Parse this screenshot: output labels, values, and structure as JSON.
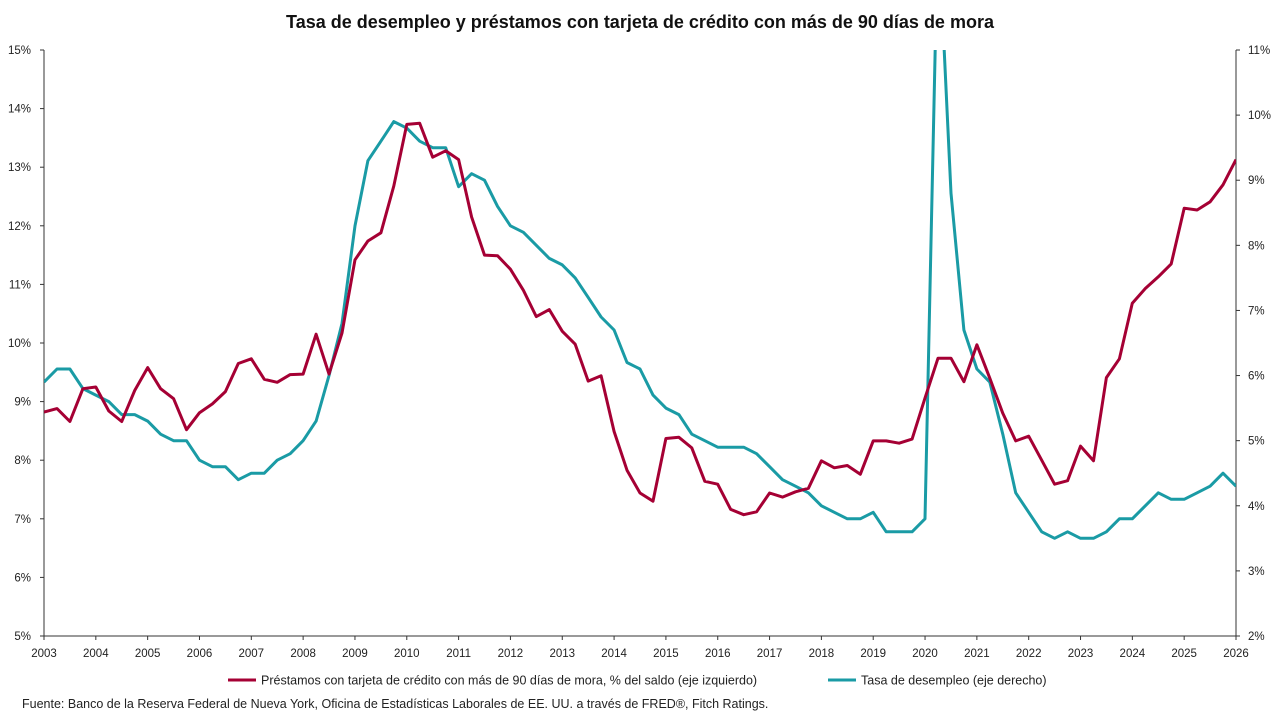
{
  "chart_data": {
    "type": "line",
    "title": "Tasa de desempleo y préstamos con tarjeta de crédito con más de 90 días de mora",
    "source": "Fuente: Banco de la Reserva Federal de Nueva York, Oficina de Estadísticas Laborales de EE. UU. a través de FRED®, Fitch Ratings.",
    "x_ticks": [
      "2003",
      "2004",
      "2005",
      "2006",
      "2007",
      "2008",
      "2009",
      "2010",
      "2011",
      "2012",
      "2013",
      "2014",
      "2015",
      "2016",
      "2017",
      "2018",
      "2019",
      "2020",
      "2021",
      "2022",
      "2023",
      "2024",
      "2025",
      "2026"
    ],
    "left_axis": {
      "ylim": [
        5,
        15
      ],
      "ticks": [
        "5%",
        "6%",
        "7%",
        "8%",
        "9%",
        "10%",
        "11%",
        "12%",
        "13%",
        "14%",
        "15%"
      ]
    },
    "right_axis": {
      "ylim": [
        2,
        11
      ],
      "ticks": [
        "2%",
        "3%",
        "4%",
        "5%",
        "6%",
        "7%",
        "8%",
        "9%",
        "10%",
        "11%"
      ]
    },
    "legend_placement": "bottom",
    "colors": {
      "credit": "#a50034",
      "unemployment": "#1a9ba5",
      "axis": "#333333"
    },
    "series": [
      {
        "name": "Préstamos con tarjeta de crédito con más de 90 días de mora, % del saldo (eje izquierdo)",
        "axis": "left",
        "x": [
          2003,
          2003.25,
          2003.5,
          2003.75,
          2004,
          2004.25,
          2004.5,
          2004.75,
          2005,
          2005.25,
          2005.5,
          2005.75,
          2006,
          2006.25,
          2006.5,
          2006.75,
          2007,
          2007.25,
          2007.5,
          2007.75,
          2008,
          2008.25,
          2008.5,
          2008.75,
          2009,
          2009.25,
          2009.5,
          2009.75,
          2010,
          2010.25,
          2010.5,
          2010.75,
          2011,
          2011.25,
          2011.5,
          2011.75,
          2012,
          2012.25,
          2012.5,
          2012.75,
          2013,
          2013.25,
          2013.5,
          2013.75,
          2014,
          2014.25,
          2014.5,
          2014.75,
          2015,
          2015.25,
          2015.5,
          2015.75,
          2016,
          2016.25,
          2016.5,
          2016.75,
          2017,
          2017.25,
          2017.5,
          2017.75,
          2018,
          2018.25,
          2018.5,
          2018.75,
          2019,
          2019.25,
          2019.5,
          2019.75,
          2020,
          2020.25,
          2020.5,
          2020.75,
          2021,
          2021.25,
          2021.5,
          2021.75,
          2022,
          2022.25,
          2022.5,
          2022.75,
          2023,
          2023.25,
          2023.5,
          2023.75,
          2024,
          2024.25,
          2024.5,
          2024.75,
          2025,
          2025.25,
          2025.5,
          2025.75,
          2026
        ],
        "values": [
          8.82,
          8.88,
          8.66,
          9.22,
          9.25,
          8.84,
          8.66,
          9.19,
          9.58,
          9.22,
          9.05,
          8.52,
          8.81,
          8.96,
          9.17,
          9.65,
          9.73,
          9.38,
          9.33,
          9.46,
          9.47,
          10.15,
          9.47,
          10.17,
          11.42,
          11.74,
          11.88,
          12.68,
          13.73,
          13.75,
          13.17,
          13.28,
          13.13,
          12.15,
          11.5,
          11.49,
          11.26,
          10.9,
          10.45,
          10.57,
          10.2,
          9.98,
          9.35,
          9.44,
          8.49,
          7.83,
          7.44,
          7.3,
          8.37,
          8.39,
          8.21,
          7.64,
          7.59,
          7.16,
          7.07,
          7.12,
          7.44,
          7.37,
          7.46,
          7.52,
          7.99,
          7.87,
          7.91,
          7.76,
          8.33,
          8.33,
          8.29,
          8.36,
          9.06,
          9.74,
          9.74,
          9.34,
          9.97,
          9.4,
          8.8,
          8.33,
          8.41,
          8.0,
          7.59,
          7.65,
          8.24,
          7.99,
          9.41,
          9.73,
          10.68,
          10.93,
          11.13,
          11.35,
          12.3,
          12.27,
          12.41,
          12.7,
          13.13
        ]
      },
      {
        "name": "Tasa de desempleo (eje derecho)",
        "axis": "right",
        "x": [
          2003,
          2003.25,
          2003.5,
          2003.75,
          2004,
          2004.25,
          2004.5,
          2004.75,
          2005,
          2005.25,
          2005.5,
          2005.75,
          2006,
          2006.25,
          2006.5,
          2006.75,
          2007,
          2007.25,
          2007.5,
          2007.75,
          2008,
          2008.25,
          2008.5,
          2008.75,
          2009,
          2009.25,
          2009.5,
          2009.75,
          2010,
          2010.25,
          2010.5,
          2010.75,
          2011,
          2011.25,
          2011.5,
          2011.75,
          2012,
          2012.25,
          2012.5,
          2012.75,
          2013,
          2013.25,
          2013.5,
          2013.75,
          2014,
          2014.25,
          2014.5,
          2014.75,
          2015,
          2015.25,
          2015.5,
          2015.75,
          2016,
          2016.25,
          2016.5,
          2016.75,
          2017,
          2017.25,
          2017.5,
          2017.75,
          2018,
          2018.25,
          2018.5,
          2018.75,
          2019,
          2019.25,
          2019.5,
          2019.75,
          2020,
          2020.25,
          2020.5,
          2020.75,
          2021,
          2021.25,
          2021.5,
          2021.75,
          2022,
          2022.25,
          2022.5,
          2022.75,
          2023,
          2023.25,
          2023.5,
          2023.75,
          2024,
          2024.25,
          2024.5,
          2024.75,
          2025,
          2025.25,
          2025.5,
          2025.75,
          2026
        ],
        "values": [
          5.9,
          6.1,
          6.1,
          5.8,
          5.7,
          5.6,
          5.4,
          5.4,
          5.3,
          5.1,
          5.0,
          5.0,
          4.7,
          4.6,
          4.6,
          4.4,
          4.5,
          4.5,
          4.7,
          4.8,
          5.0,
          5.3,
          6.0,
          6.8,
          8.3,
          9.3,
          9.6,
          9.9,
          9.8,
          9.6,
          9.5,
          9.5,
          8.9,
          9.1,
          9.0,
          8.6,
          8.3,
          8.2,
          8.0,
          7.8,
          7.7,
          7.5,
          7.2,
          6.9,
          6.7,
          6.2,
          6.1,
          5.7,
          5.5,
          5.4,
          5.1,
          5.0,
          4.9,
          4.9,
          4.9,
          4.8,
          4.6,
          4.4,
          4.3,
          4.2,
          4.0,
          3.9,
          3.8,
          3.8,
          3.9,
          3.6,
          3.6,
          3.6,
          3.8,
          13.0,
          8.8,
          6.7,
          6.1,
          5.9,
          5.1,
          4.2,
          3.9,
          3.6,
          3.5,
          3.6,
          3.5,
          3.5,
          3.6,
          3.8,
          3.8,
          4.0,
          4.2,
          4.1,
          4.1,
          4.2,
          4.3,
          4.5,
          4.3
        ]
      }
    ]
  }
}
